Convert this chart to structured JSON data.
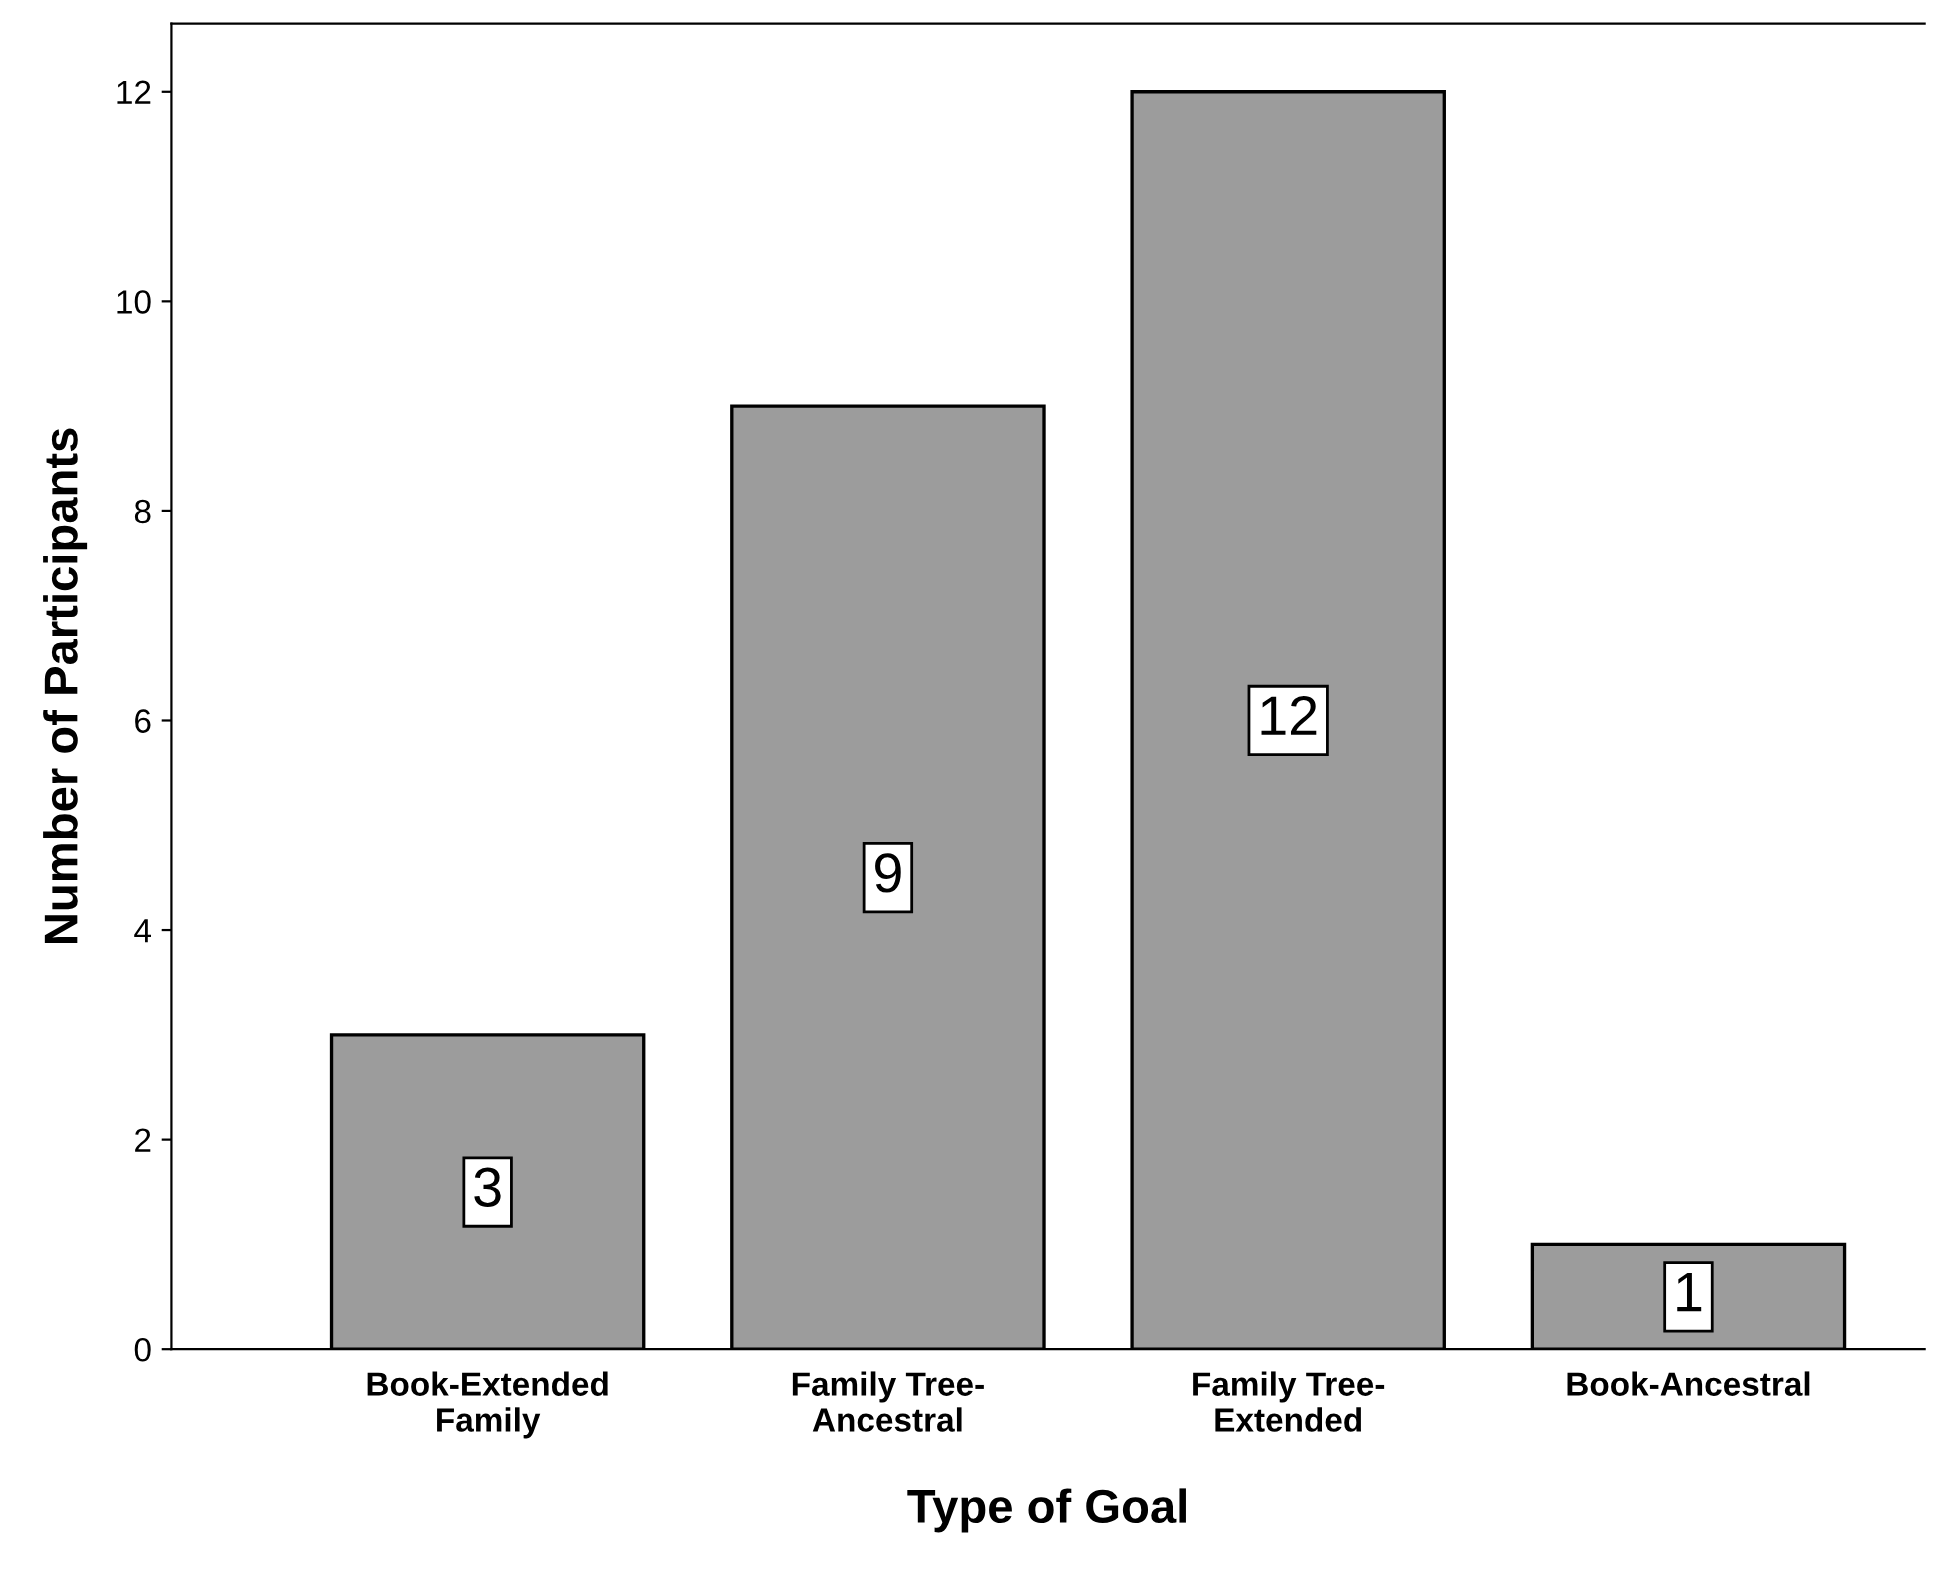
{
  "chart_data": {
    "type": "bar",
    "xlabel": "Type of Goal",
    "ylabel": "Number of Participants",
    "categories": [
      "Book-Extended\nFamily",
      "Family Tree-\nAncestral",
      "Family Tree-\nExtended",
      "Book-Ancestral"
    ],
    "values": [
      3,
      9,
      12,
      1
    ],
    "color": "#9c9c9c",
    "ylim": [
      0,
      12.65
    ],
    "yticks": [
      0,
      2,
      4,
      6,
      8,
      10,
      12
    ],
    "grid": false,
    "data_labels": true
  }
}
